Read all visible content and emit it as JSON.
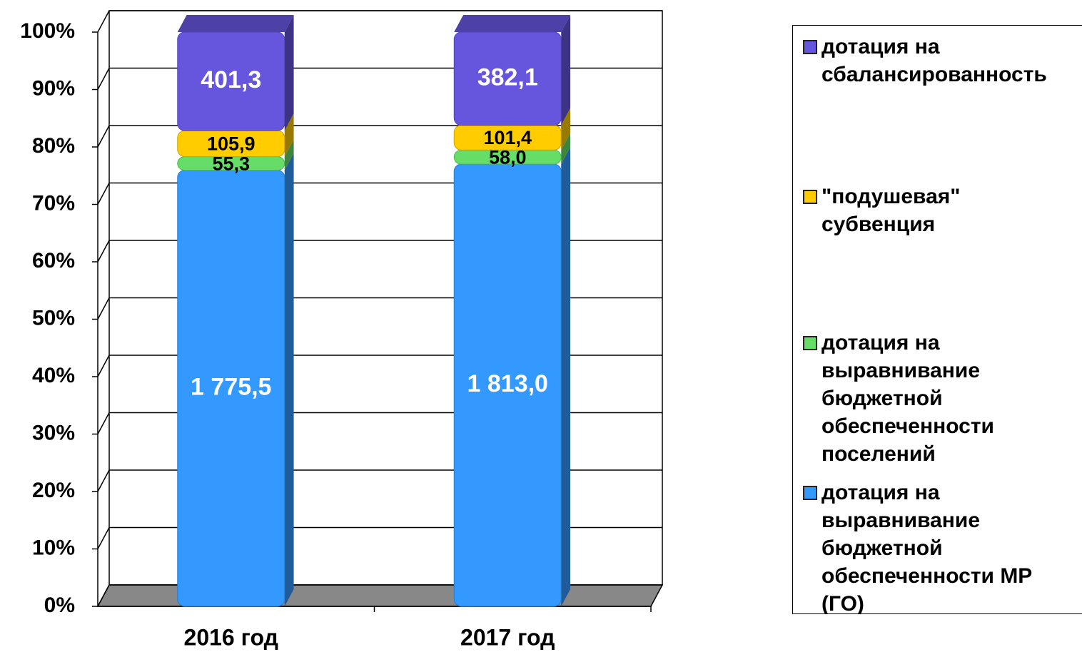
{
  "chart_data": {
    "type": "stacked_percent_bar",
    "categories": [
      "2016 год",
      "2017 год"
    ],
    "series": [
      {
        "name": "дотация на выравнивание бюджетной обеспеченности МР (ГО)",
        "color": "#3399ff",
        "values": [
          1775.5,
          1813.0
        ],
        "value_labels": [
          "1 775,5",
          "1 813,0"
        ]
      },
      {
        "name": "дотация на выравнивание бюджетной обеспеченности поселений",
        "color": "#66dd66",
        "values": [
          55.3,
          58.0
        ],
        "value_labels": [
          "55,3",
          "58,0"
        ]
      },
      {
        "name": "\"подушевая\" субвенция",
        "color": "#ffcc00",
        "values": [
          105.9,
          101.4
        ],
        "value_labels": [
          "105,9",
          "101,4"
        ]
      },
      {
        "name": "дотация на сбалансированность",
        "color": "#6655dd",
        "values": [
          401.3,
          382.1
        ],
        "value_labels": [
          "401,3",
          "382,1"
        ]
      }
    ],
    "ylim": [
      0,
      100
    ],
    "yticks": [
      {
        "value": 0,
        "label": "0%"
      },
      {
        "value": 10,
        "label": "10%"
      },
      {
        "value": 20,
        "label": "20%"
      },
      {
        "value": 30,
        "label": "30%"
      },
      {
        "value": 40,
        "label": "40%"
      },
      {
        "value": 50,
        "label": "50%"
      },
      {
        "value": 60,
        "label": "60%"
      },
      {
        "value": 70,
        "label": "70%"
      },
      {
        "value": 80,
        "label": "80%"
      },
      {
        "value": 90,
        "label": "90%"
      },
      {
        "value": 100,
        "label": "100%"
      }
    ],
    "grid": true,
    "legend": "right"
  }
}
